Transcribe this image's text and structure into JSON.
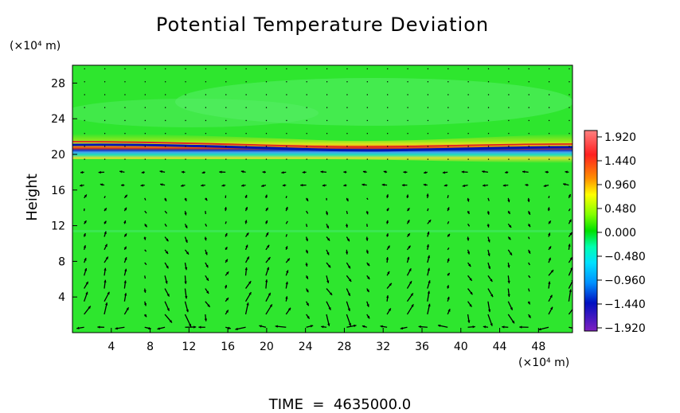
{
  "chart_data": {
    "type": "heatmap",
    "title": "Potential Temperature Deviation",
    "ylabel": "Height",
    "y_unit": "(×10⁴ m)",
    "x_unit": "(×10⁴ m)",
    "x_ticks": [
      4,
      8,
      12,
      16,
      20,
      24,
      28,
      32,
      36,
      40,
      44,
      48
    ],
    "y_ticks": [
      4,
      8,
      12,
      16,
      20,
      24,
      28
    ],
    "xlim": [
      0,
      51.5
    ],
    "ylim": [
      0,
      30
    ],
    "colorbar": {
      "ticks": [
        "1.920",
        "1.440",
        "0.960",
        "0.480",
        "0.000",
        "−0.480",
        "−0.960",
        "−1.440",
        "−1.920"
      ],
      "range": [
        -1.92,
        1.92
      ]
    },
    "overlay": "wind vectors",
    "footer": "TIME  =  4635000.0"
  }
}
